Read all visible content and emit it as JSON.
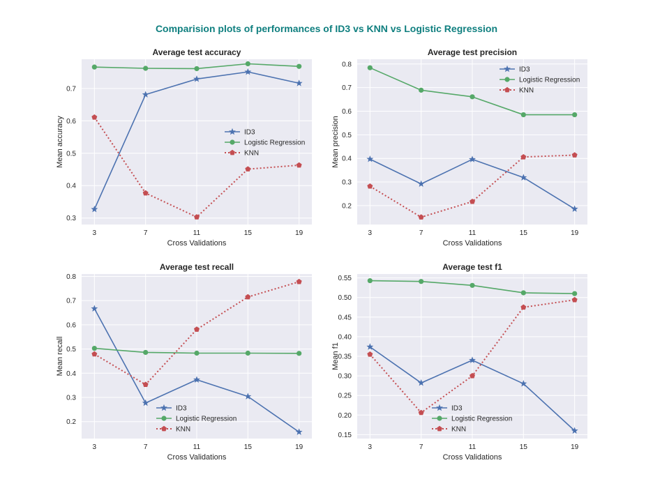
{
  "figure_title": "Comparision plots of performances of ID3 vs KNN vs Logistic Regression",
  "chart_data": [
    {
      "type": "line",
      "title": "Average test accuracy",
      "xlabel": "Cross Validations",
      "ylabel": "Mean accuracy",
      "x": [
        3,
        7,
        11,
        15,
        19
      ],
      "ylim": [
        0.28,
        0.79
      ],
      "yticks": [
        "0.3",
        "0.4",
        "0.5",
        "0.6",
        "0.7"
      ],
      "legend_position": "center-right",
      "grid": true,
      "series": [
        {
          "name": "ID3",
          "values": [
            0.327,
            0.681,
            0.729,
            0.751,
            0.716
          ]
        },
        {
          "name": "Logistic Regression",
          "values": [
            0.766,
            0.762,
            0.761,
            0.776,
            0.768
          ]
        },
        {
          "name": "KNN",
          "values": [
            0.611,
            0.377,
            0.303,
            0.451,
            0.463
          ]
        }
      ]
    },
    {
      "type": "line",
      "title": "Average test precision",
      "xlabel": "Cross Validations",
      "ylabel": "Mean precision",
      "x": [
        3,
        7,
        11,
        15,
        19
      ],
      "ylim": [
        0.12,
        0.82
      ],
      "yticks": [
        "0.2",
        "0.3",
        "0.4",
        "0.5",
        "0.6",
        "0.7",
        "0.8"
      ],
      "legend_position": "top-right",
      "grid": true,
      "series": [
        {
          "name": "ID3",
          "values": [
            0.397,
            0.292,
            0.396,
            0.319,
            0.186
          ]
        },
        {
          "name": "Logistic Regression",
          "values": [
            0.784,
            0.689,
            0.661,
            0.585,
            0.585
          ]
        },
        {
          "name": "KNN",
          "values": [
            0.282,
            0.151,
            0.217,
            0.406,
            0.414
          ]
        }
      ]
    },
    {
      "type": "line",
      "title": "Average test recall",
      "xlabel": "Cross Validations",
      "ylabel": "Mean recall",
      "x": [
        3,
        7,
        11,
        15,
        19
      ],
      "ylim": [
        0.13,
        0.81
      ],
      "yticks": [
        "0.2",
        "0.3",
        "0.4",
        "0.5",
        "0.6",
        "0.7",
        "0.8"
      ],
      "legend_position": "lower-center",
      "grid": true,
      "series": [
        {
          "name": "ID3",
          "values": [
            0.667,
            0.277,
            0.373,
            0.304,
            0.157
          ]
        },
        {
          "name": "Logistic Regression",
          "values": [
            0.503,
            0.486,
            0.483,
            0.483,
            0.482
          ]
        },
        {
          "name": "KNN",
          "values": [
            0.479,
            0.353,
            0.581,
            0.715,
            0.778
          ]
        }
      ]
    },
    {
      "type": "line",
      "title": "Average test f1",
      "xlabel": "Cross Validations",
      "ylabel": "Mean f1",
      "x": [
        3,
        7,
        11,
        15,
        19
      ],
      "ylim": [
        0.14,
        0.56
      ],
      "yticks": [
        "0.15",
        "0.20",
        "0.25",
        "0.30",
        "0.35",
        "0.40",
        "0.45",
        "0.50",
        "0.55"
      ],
      "legend_position": "lower-left",
      "grid": true,
      "series": [
        {
          "name": "ID3",
          "values": [
            0.374,
            0.282,
            0.34,
            0.28,
            0.16
          ]
        },
        {
          "name": "Logistic Regression",
          "values": [
            0.543,
            0.541,
            0.531,
            0.512,
            0.51
          ]
        },
        {
          "name": "KNN",
          "values": [
            0.355,
            0.206,
            0.3,
            0.475,
            0.494
          ]
        }
      ]
    }
  ],
  "colors": {
    "ID3": "#4c72b0",
    "Logistic Regression": "#55a868",
    "KNN": "#c44e52",
    "axes_background": "#eaeaf2",
    "grid": "#ffffff",
    "figure_title": "#0f7f7f"
  }
}
